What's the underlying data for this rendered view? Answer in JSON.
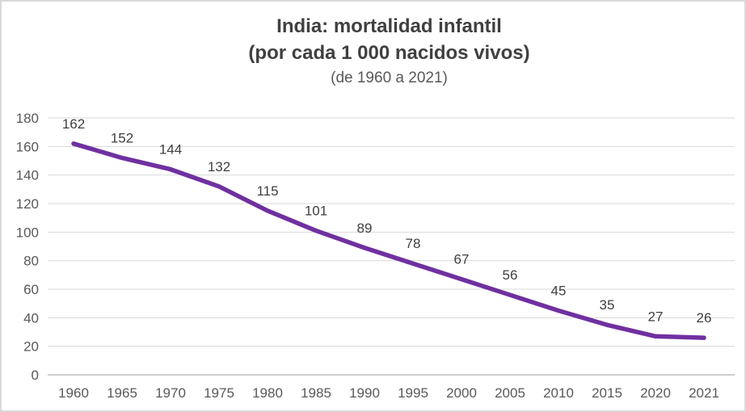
{
  "title": {
    "line1": "India: mortalidad infantil",
    "line2": "(por cada 1 000 nacidos vivos)",
    "line3": "(de 1960 a 2021)"
  },
  "colors": {
    "line": "#7030A0",
    "title_text": "#404040",
    "subtitle_text": "#595959",
    "axis_text": "#595959",
    "data_label_text": "#404040",
    "gridline": "#D9D9D9",
    "axis_line": "#BFBFBF",
    "border": "#D9D9D9",
    "background": "#FFFFFF"
  },
  "chart_data": {
    "type": "line",
    "title": "India: mortalidad infantil",
    "subtitle": "(por cada 1 000 nacidos vivos)",
    "caption": "(de 1960 a 2021)",
    "categories": [
      "1960",
      "1965",
      "1970",
      "1975",
      "1980",
      "1985",
      "1990",
      "1995",
      "2000",
      "2005",
      "2010",
      "2015",
      "2020",
      "2021"
    ],
    "values": [
      162,
      152,
      144,
      132,
      115,
      101,
      89,
      78,
      67,
      56,
      45,
      35,
      27,
      26
    ],
    "xlabel": "",
    "ylabel": "",
    "ylim": [
      0,
      180
    ],
    "yticks": [
      0,
      20,
      40,
      60,
      80,
      100,
      120,
      140,
      160,
      180
    ],
    "grid": true,
    "legend": "none",
    "data_labels_shown": true
  }
}
